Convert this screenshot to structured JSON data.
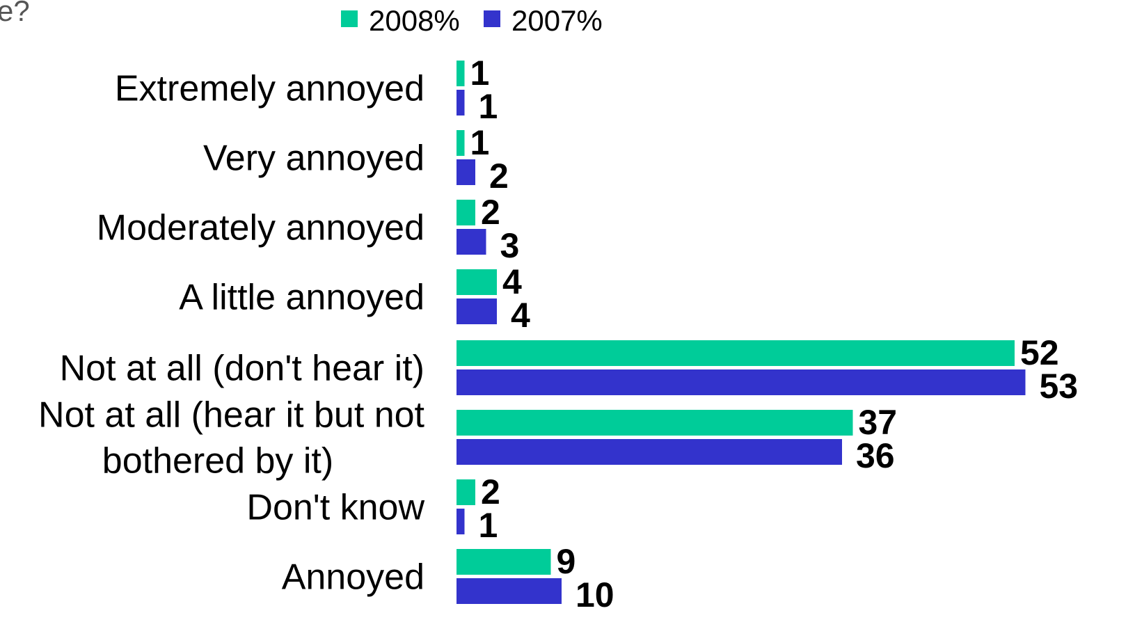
{
  "chart_data": {
    "type": "bar",
    "orientation": "horizontal",
    "title_fragment": "e?",
    "categories": [
      "Extremely annoyed",
      "Very annoyed",
      "Moderately annoyed",
      "A little annoyed",
      "Not at all (don't hear it)",
      "Not at all (hear it but not bothered by it)",
      "Don't know",
      "Annoyed"
    ],
    "category_lines": [
      [
        "Extremely annoyed"
      ],
      [
        "Very annoyed"
      ],
      [
        "Moderately annoyed"
      ],
      [
        "A little annoyed"
      ],
      [
        "Not at all (don't hear it)"
      ],
      [
        "Not at all (hear it but not",
        "bothered by it)"
      ],
      [
        "Don't know"
      ],
      [
        "Annoyed"
      ]
    ],
    "series": [
      {
        "name": "2008%",
        "color": "#00CC99",
        "values": [
          1,
          1,
          2,
          4,
          52,
          37,
          2,
          9
        ]
      },
      {
        "name": "2007%",
        "color": "#3333CC",
        "values": [
          1,
          2,
          3,
          4,
          53,
          36,
          1,
          10
        ]
      }
    ],
    "xlim": [
      0,
      53
    ],
    "legend": {
      "position": "top-center",
      "entries": [
        "2008%",
        "2007%"
      ]
    },
    "grid": false,
    "data_labels": true
  }
}
